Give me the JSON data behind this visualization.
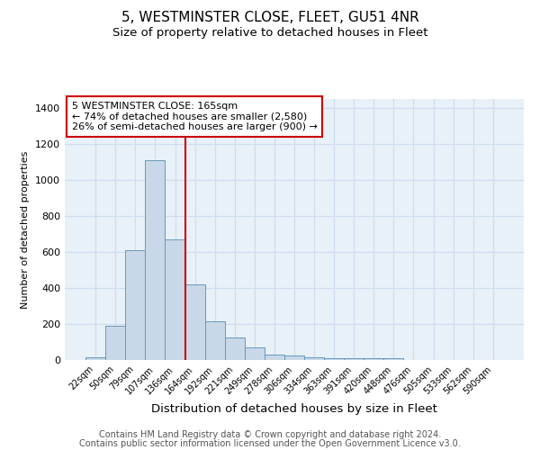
{
  "title": "5, WESTMINSTER CLOSE, FLEET, GU51 4NR",
  "subtitle": "Size of property relative to detached houses in Fleet",
  "xlabel": "Distribution of detached houses by size in Fleet",
  "ylabel": "Number of detached properties",
  "footnote1": "Contains HM Land Registry data © Crown copyright and database right 2024.",
  "footnote2": "Contains public sector information licensed under the Open Government Licence v3.0.",
  "bin_labels": [
    "22sqm",
    "50sqm",
    "79sqm",
    "107sqm",
    "136sqm",
    "164sqm",
    "192sqm",
    "221sqm",
    "249sqm",
    "278sqm",
    "306sqm",
    "334sqm",
    "363sqm",
    "391sqm",
    "420sqm",
    "448sqm",
    "476sqm",
    "505sqm",
    "533sqm",
    "562sqm",
    "590sqm"
  ],
  "bar_values": [
    15,
    190,
    610,
    1110,
    670,
    420,
    215,
    125,
    70,
    30,
    25,
    15,
    12,
    10,
    8,
    8,
    2,
    1,
    1,
    0,
    0
  ],
  "bar_color": "#c8d8e8",
  "bar_edge_color": "#6699bb",
  "vline_after_index": 4,
  "vline_color": "#cc0000",
  "annotation_text": "5 WESTMINSTER CLOSE: 165sqm\n← 74% of detached houses are smaller (2,580)\n26% of semi-detached houses are larger (900) →",
  "annotation_box_color": "#ffffff",
  "annotation_box_edge": "#cc0000",
  "ylim": [
    0,
    1450
  ],
  "yticks": [
    0,
    200,
    400,
    600,
    800,
    1000,
    1200,
    1400
  ],
  "grid_color": "#ccddee",
  "bg_color": "#e8f0f8",
  "title_fontsize": 11,
  "subtitle_fontsize": 9.5,
  "footnote_fontsize": 7
}
